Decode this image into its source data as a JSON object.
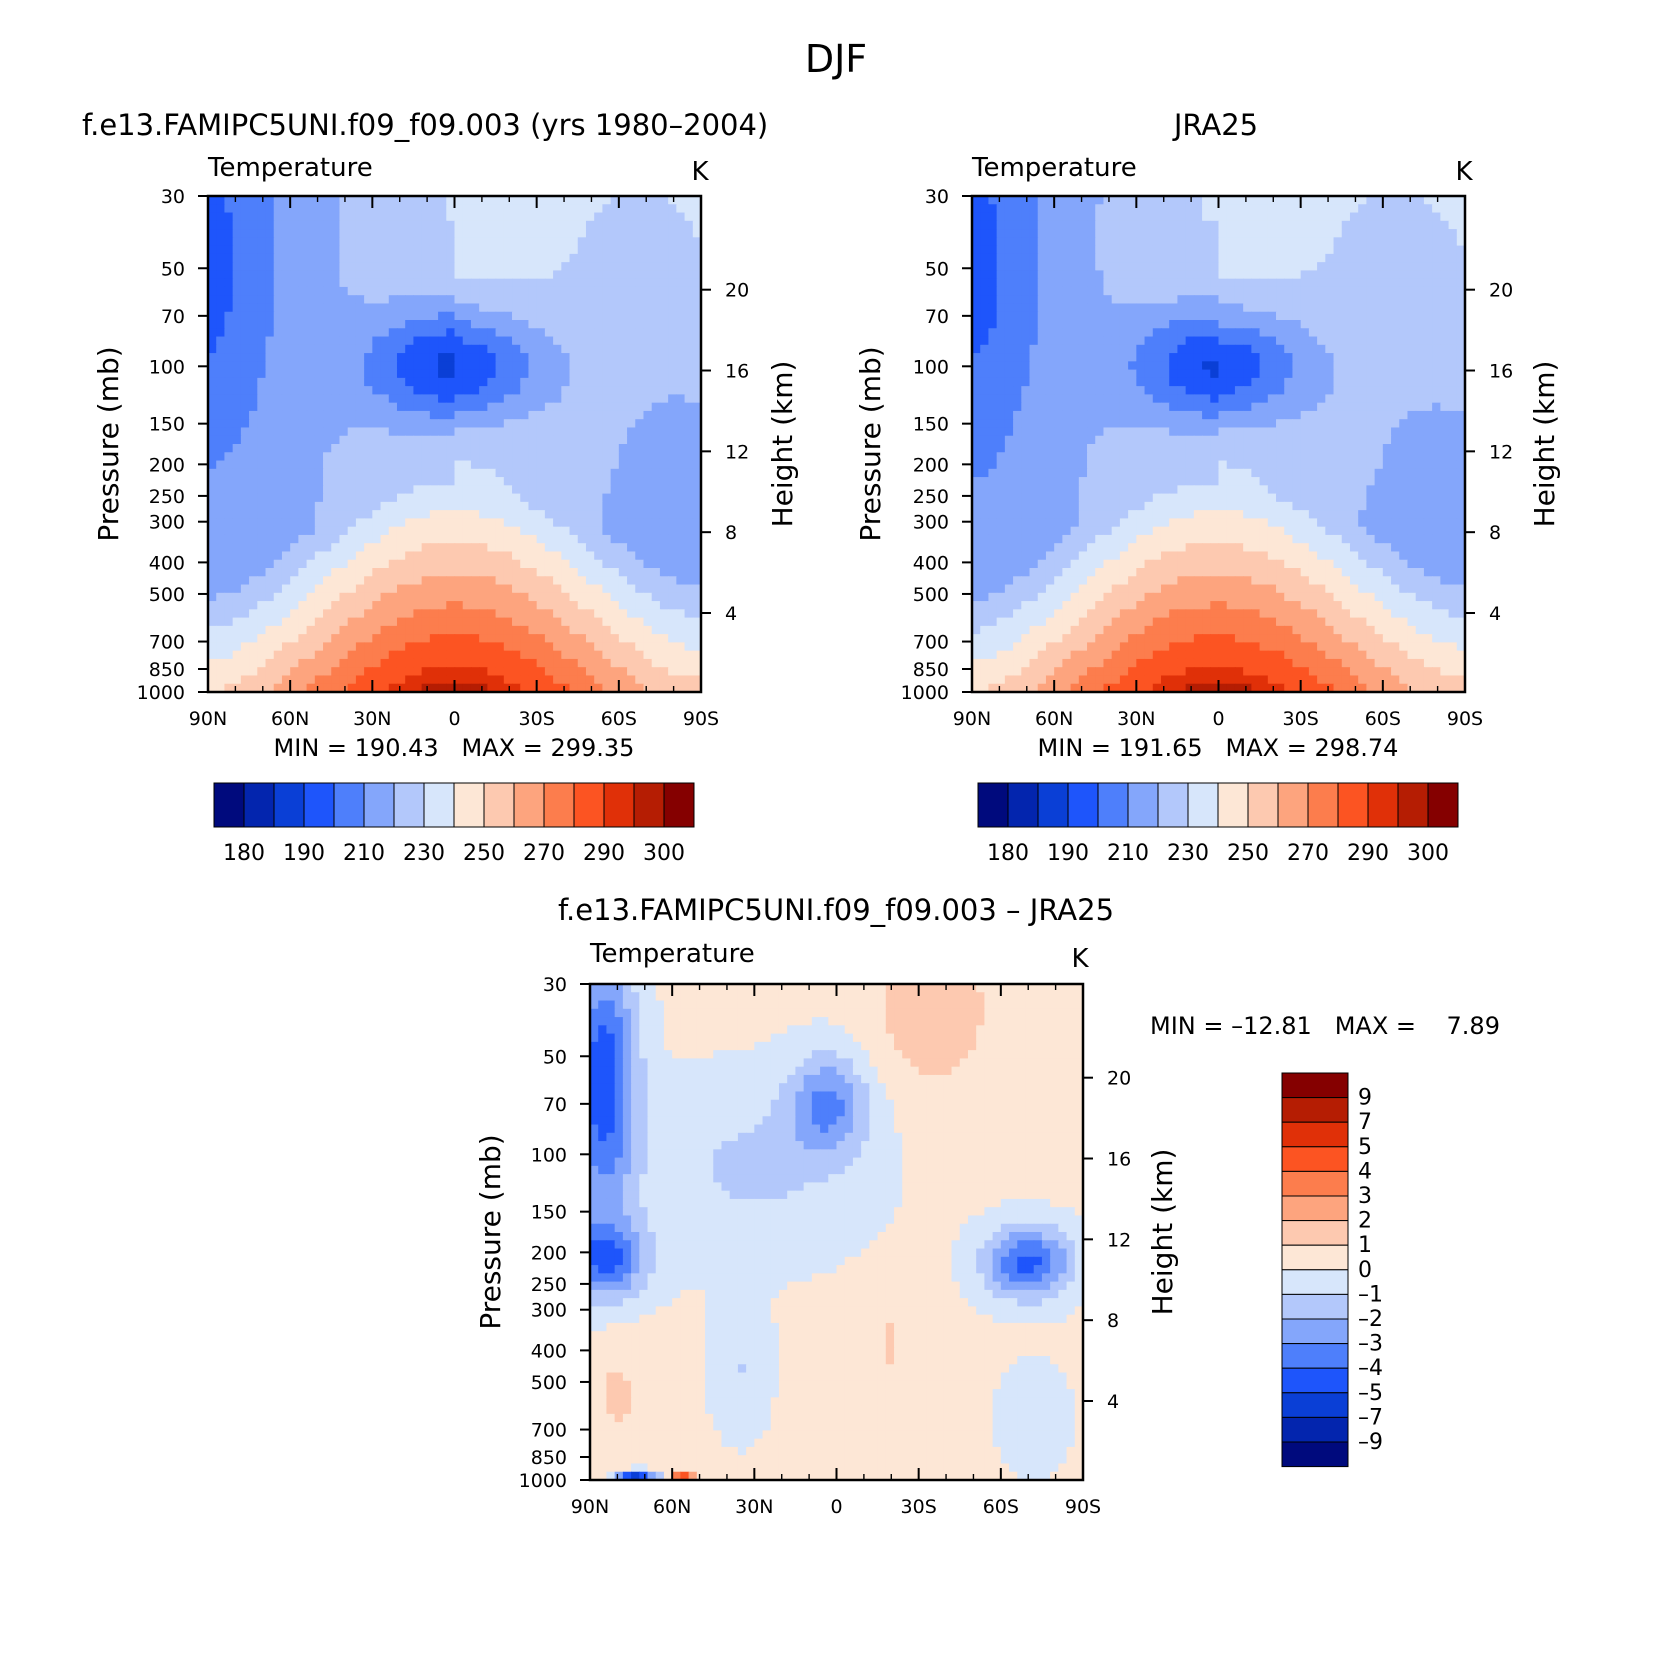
{
  "figure_title": "DJF",
  "chart_data": [
    {
      "type": "heatmap",
      "id": "model",
      "title": "f.e13.FAMIPC5UNI.f09_f09.003 (yrs 1980–2004)",
      "subtitle": "Temperature",
      "units": "K",
      "ylabel": "Pressure (mb)",
      "y2label": "Height (km)",
      "x_ticks": [
        "90N",
        "60N",
        "30N",
        "0",
        "30S",
        "60S",
        "90S"
      ],
      "y_ticks": [
        30,
        50,
        70,
        100,
        150,
        200,
        250,
        300,
        400,
        500,
        700,
        850,
        1000
      ],
      "y2_ticks": [
        20,
        16,
        12,
        8,
        4
      ],
      "ylim": [
        1000,
        30
      ],
      "stats": {
        "min": "190.43",
        "max": "299.35"
      },
      "stats_text": "MIN = 190.43   MAX = 299.35",
      "colorbar_labels": [
        "180",
        "190",
        "210",
        "230",
        "250",
        "270",
        "290",
        "300"
      ],
      "data_min": 190.43,
      "data_max": 299.35,
      "structure": {
        "tropopause_center_T": 192,
        "surface_center_T": 298,
        "surface_pole_T": 250,
        "strat_pole_T": 205
      }
    },
    {
      "type": "heatmap",
      "id": "obs",
      "title": "JRA25",
      "subtitle": "Temperature",
      "units": "K",
      "ylabel": "Pressure (mb)",
      "y2label": "Height (km)",
      "x_ticks": [
        "90N",
        "60N",
        "30N",
        "0",
        "30S",
        "60S",
        "90S"
      ],
      "y_ticks": [
        30,
        50,
        70,
        100,
        150,
        200,
        250,
        300,
        400,
        500,
        700,
        850,
        1000
      ],
      "y2_ticks": [
        20,
        16,
        12,
        8,
        4
      ],
      "ylim": [
        1000,
        30
      ],
      "stats": {
        "min": "191.65",
        "max": "298.74"
      },
      "stats_text": "MIN = 191.65   MAX = 298.74",
      "colorbar_labels": [
        "180",
        "190",
        "210",
        "230",
        "250",
        "270",
        "290",
        "300"
      ],
      "data_min": 191.65,
      "data_max": 298.74,
      "structure": {
        "tropopause_center_T": 193,
        "surface_center_T": 298,
        "surface_pole_T": 250,
        "strat_pole_T": 206
      }
    },
    {
      "type": "heatmap",
      "id": "diff",
      "title": "f.e13.FAMIPC5UNI.f09_f09.003 – JRA25",
      "subtitle": "Temperature",
      "units": "K",
      "ylabel": "Pressure (mb)",
      "y2label": "Height (km)",
      "x_ticks": [
        "90N",
        "60N",
        "30N",
        "0",
        "30S",
        "60S",
        "90S"
      ],
      "y_ticks": [
        30,
        50,
        70,
        100,
        150,
        200,
        250,
        300,
        400,
        500,
        700,
        850,
        1000
      ],
      "y2_ticks": [
        20,
        16,
        12,
        8,
        4
      ],
      "ylim": [
        1000,
        30
      ],
      "stats_text": "MIN = –12.81   MAX =    7.89",
      "colorbar_labels": [
        "9",
        "7",
        "5",
        "4",
        "3",
        "2",
        "1",
        "0",
        "–1",
        "–2",
        "–3",
        "–4",
        "–5",
        "–7",
        "–9"
      ],
      "data_min": -12.81,
      "data_max": 7.89
    }
  ],
  "colormaps": {
    "absolute": [
      "#000a7d",
      "#0325ae",
      "#0a3fd6",
      "#1e55fb",
      "#4e7ffb",
      "#84a6fb",
      "#b3c8fb",
      "#d7e6fb",
      "#fde7d6",
      "#fdc9b0",
      "#fda47e",
      "#fc7d4d",
      "#fc5422",
      "#e03008",
      "#b51d03",
      "#850000"
    ],
    "difference": [
      "#000a7d",
      "#0325ae",
      "#0a3fd6",
      "#1e55fb",
      "#4e7ffb",
      "#84a6fb",
      "#b3c8fb",
      "#d7e6fb",
      "#fde7d6",
      "#fdc9b0",
      "#fda47e",
      "#fc7d4d",
      "#fc5422",
      "#e03008",
      "#b51d03",
      "#850000"
    ]
  }
}
